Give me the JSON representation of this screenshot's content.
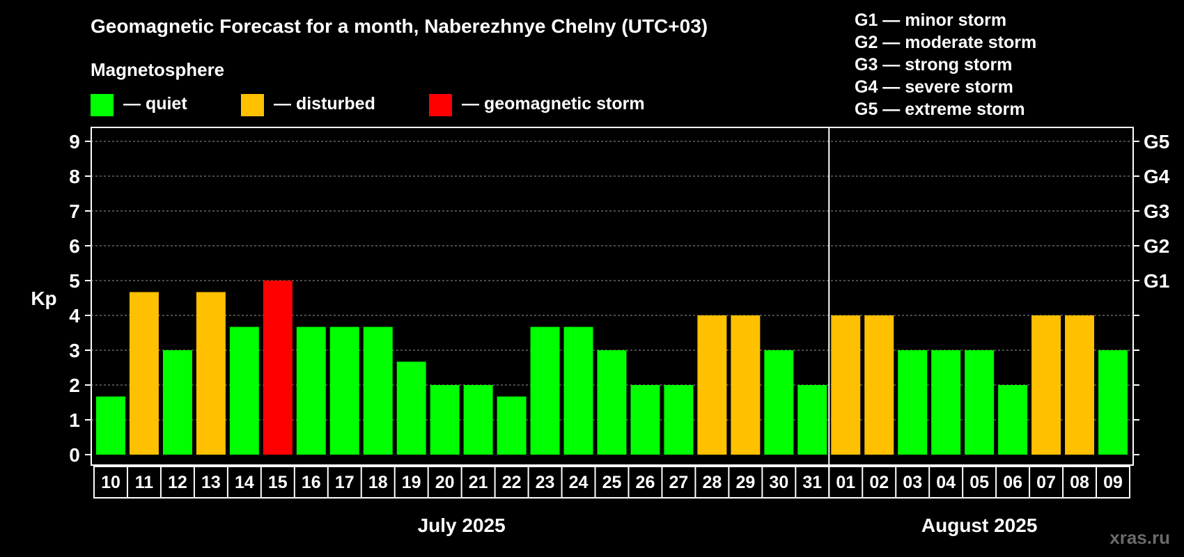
{
  "colors": {
    "background": "#000000",
    "quiet": "#00ff00",
    "disturbed": "#ffc000",
    "storm": "#ff0000",
    "text": "#ffffff",
    "grid": "#999999",
    "watermark": "#6b6b6b"
  },
  "chart_data": {
    "type": "bar",
    "title": "Geomagnetic Forecast for a month, Naberezhnye Chelny (UTC+03)",
    "ylabel": "Kp",
    "ylim": [
      0,
      9
    ],
    "yticks": [
      "0",
      "1",
      "2",
      "3",
      "4",
      "5",
      "6",
      "7",
      "8",
      "9"
    ],
    "right_axis_labels": [
      {
        "kp": 5,
        "label": "G1"
      },
      {
        "kp": 6,
        "label": "G2"
      },
      {
        "kp": 7,
        "label": "G3"
      },
      {
        "kp": 8,
        "label": "G4"
      },
      {
        "kp": 9,
        "label": "G5"
      }
    ],
    "legend_title": "Magnetosphere",
    "legend": [
      {
        "status": "quiet",
        "label": "— quiet"
      },
      {
        "status": "disturbed",
        "label": "— disturbed"
      },
      {
        "status": "storm",
        "label": "— geomagnetic storm"
      }
    ],
    "storm_scale": [
      "G1 — minor storm",
      "G2 — moderate storm",
      "G3 — strong storm",
      "G4 — severe storm",
      "G5 — extreme storm"
    ],
    "categories": [
      "10",
      "11",
      "12",
      "13",
      "14",
      "15",
      "16",
      "17",
      "18",
      "19",
      "20",
      "21",
      "22",
      "23",
      "24",
      "25",
      "26",
      "27",
      "28",
      "29",
      "30",
      "31",
      "01",
      "02",
      "03",
      "04",
      "05",
      "06",
      "07",
      "08",
      "09"
    ],
    "values": [
      1.67,
      4.67,
      3,
      4.67,
      3.67,
      5,
      3.67,
      3.67,
      3.67,
      2.67,
      2,
      2,
      1.67,
      3.67,
      3.67,
      3,
      2,
      2,
      4,
      4,
      3,
      2,
      4,
      4,
      3,
      3,
      3,
      2,
      4,
      4,
      3
    ],
    "status": [
      "quiet",
      "disturbed",
      "quiet",
      "disturbed",
      "quiet",
      "storm",
      "quiet",
      "quiet",
      "quiet",
      "quiet",
      "quiet",
      "quiet",
      "quiet",
      "quiet",
      "quiet",
      "quiet",
      "quiet",
      "quiet",
      "disturbed",
      "disturbed",
      "quiet",
      "quiet",
      "disturbed",
      "disturbed",
      "quiet",
      "quiet",
      "quiet",
      "quiet",
      "disturbed",
      "disturbed",
      "quiet"
    ],
    "months": [
      {
        "label": "July 2025",
        "count": 22
      },
      {
        "label": "August 2025",
        "count": 9
      }
    ]
  },
  "watermark": "xras.ru"
}
